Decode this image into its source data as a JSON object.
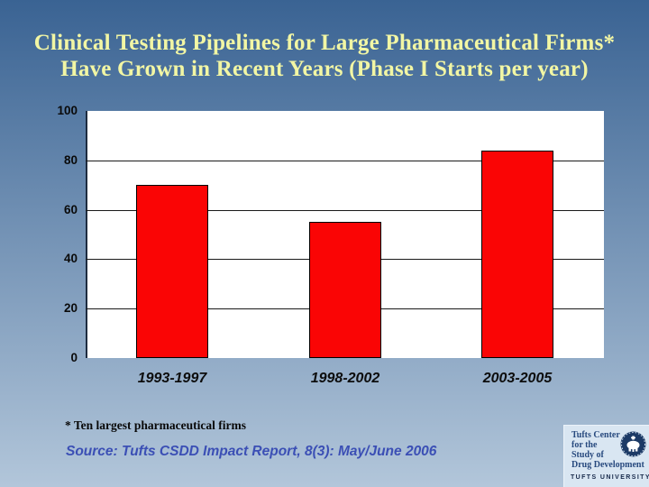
{
  "slide": {
    "title_line1": "Clinical Testing Pipelines for Large Pharmaceutical Firms*",
    "title_line2": "Have Grown in Recent Years (Phase I Starts per year)",
    "title_color": "#f2f6a4",
    "background_top": "#3a6393",
    "background_bottom": "#b2c6da"
  },
  "chart_data": {
    "type": "bar",
    "categories": [
      "1993-1997",
      "1998-2002",
      "2003-2005"
    ],
    "values": [
      70,
      55,
      84
    ],
    "title": "",
    "xlabel": "",
    "ylabel": "",
    "ylim": [
      0,
      100
    ],
    "yticks": [
      0,
      20,
      40,
      60,
      80,
      100
    ],
    "grid": "horizontal black lines at 20/40/60/80",
    "legend_position": "none",
    "bar_color": "#fa0505",
    "bar_border_color": "#000000",
    "plot_background": "#ffffff",
    "axis_line_color": "#1e2c40",
    "tick_label_color": "#0a0a0a"
  },
  "footnote": "* Ten largest pharmaceutical firms",
  "source": {
    "text": "Source: Tufts CSDD Impact Report, 8(3): May/June 2006",
    "color": "#3b4fb5"
  },
  "logo": {
    "lines": [
      "Tufts Center",
      "for the",
      "Study of",
      "Drug Development"
    ],
    "university": "TUFTS UNIVERSITY",
    "box_color": "#d9e6f2",
    "text_color": "#27497e",
    "university_color": "#17294a",
    "seal_color": "#1c3a66",
    "seal_icon": "tufts-seal-icon"
  }
}
